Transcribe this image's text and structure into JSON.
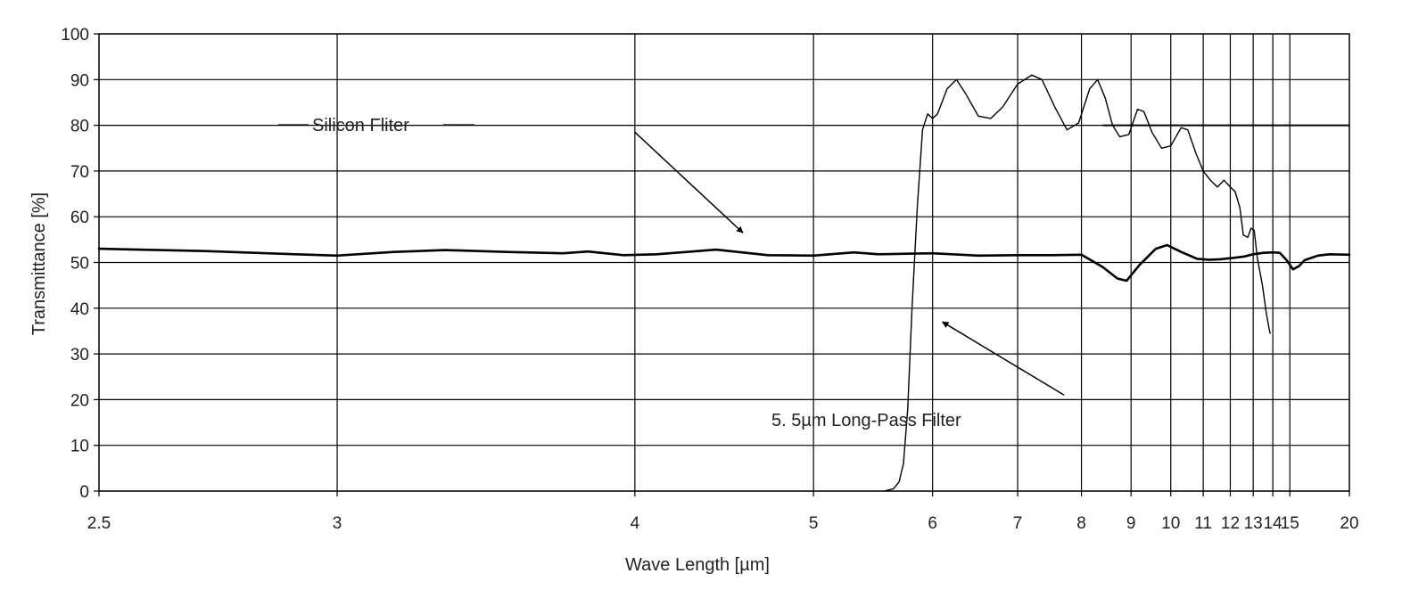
{
  "chart_data": {
    "type": "line",
    "xlabel": "Wave Length [µm]",
    "ylabel": "Transmittance [%]",
    "x_scale": "reciprocal",
    "xlim": [
      2.5,
      20
    ],
    "ylim": [
      0,
      100
    ],
    "grid": true,
    "x_ticks": [
      2.5,
      3,
      4,
      5,
      6,
      7,
      8,
      9,
      10,
      11,
      12,
      13,
      14,
      15,
      20
    ],
    "x_tick_labels": [
      "2.5",
      "3",
      "4",
      "5",
      "6",
      "7",
      "8",
      "9",
      "10",
      "11",
      "12",
      "13",
      "14",
      "15",
      "20"
    ],
    "y_ticks": [
      0,
      10,
      20,
      30,
      40,
      50,
      60,
      70,
      80,
      90,
      100
    ],
    "y_tick_labels": [
      "0",
      "10",
      "20",
      "30",
      "40",
      "50",
      "60",
      "70",
      "80",
      "90",
      "100"
    ],
    "series": [
      {
        "name": "Silicon Fliter",
        "color": "#000000",
        "points": [
          [
            2.5,
            53
          ],
          [
            2.7,
            52.5
          ],
          [
            2.9,
            51.8
          ],
          [
            3.0,
            51.5
          ],
          [
            3.15,
            52.3
          ],
          [
            3.3,
            52.7
          ],
          [
            3.5,
            52.3
          ],
          [
            3.7,
            52.0
          ],
          [
            3.8,
            52.4
          ],
          [
            3.95,
            51.6
          ],
          [
            4.1,
            51.8
          ],
          [
            4.4,
            52.8
          ],
          [
            4.7,
            51.6
          ],
          [
            5.0,
            51.5
          ],
          [
            5.3,
            52.2
          ],
          [
            5.5,
            51.8
          ],
          [
            5.7,
            51.9
          ],
          [
            6.0,
            52.0
          ],
          [
            6.5,
            51.5
          ],
          [
            7.0,
            51.6
          ],
          [
            7.5,
            51.6
          ],
          [
            8.0,
            51.7
          ],
          [
            8.4,
            49.0
          ],
          [
            8.7,
            46.5
          ],
          [
            8.9,
            46.0
          ],
          [
            9.2,
            49.5
          ],
          [
            9.6,
            53.0
          ],
          [
            9.9,
            53.8
          ],
          [
            10.3,
            52.3
          ],
          [
            10.8,
            50.8
          ],
          [
            11.2,
            50.6
          ],
          [
            11.6,
            50.7
          ],
          [
            12.1,
            51.0
          ],
          [
            12.6,
            51.3
          ],
          [
            13.0,
            51.8
          ],
          [
            13.5,
            52.1
          ],
          [
            14.0,
            52.2
          ],
          [
            14.4,
            52.1
          ],
          [
            14.8,
            50.5
          ],
          [
            15.2,
            48.5
          ],
          [
            15.6,
            49.2
          ],
          [
            16.0,
            50.5
          ],
          [
            17.0,
            51.5
          ],
          [
            18.0,
            51.8
          ],
          [
            20.0,
            51.7
          ]
        ]
      },
      {
        "name": "5. 5µm Long-Pass Filter",
        "color": "#000000",
        "points": [
          [
            5.55,
            0
          ],
          [
            5.63,
            0.5
          ],
          [
            5.68,
            2.0
          ],
          [
            5.72,
            6.0
          ],
          [
            5.76,
            18.0
          ],
          [
            5.8,
            40.0
          ],
          [
            5.85,
            62.0
          ],
          [
            5.9,
            79.0
          ],
          [
            5.95,
            82.5
          ],
          [
            6.0,
            81.5
          ],
          [
            6.05,
            82.5
          ],
          [
            6.15,
            88.0
          ],
          [
            6.25,
            90.0
          ],
          [
            6.35,
            87.0
          ],
          [
            6.5,
            82.0
          ],
          [
            6.65,
            81.5
          ],
          [
            6.8,
            84.0
          ],
          [
            7.0,
            89.0
          ],
          [
            7.2,
            91.0
          ],
          [
            7.35,
            90.0
          ],
          [
            7.55,
            84.0
          ],
          [
            7.75,
            79.0
          ],
          [
            7.95,
            80.5
          ],
          [
            8.15,
            88.0
          ],
          [
            8.3,
            90.0
          ],
          [
            8.45,
            86.0
          ],
          [
            8.6,
            80.0
          ],
          [
            8.75,
            77.5
          ],
          [
            8.95,
            78.0
          ],
          [
            9.15,
            83.5
          ],
          [
            9.3,
            83.0
          ],
          [
            9.5,
            78.5
          ],
          [
            9.75,
            75.0
          ],
          [
            10.0,
            75.5
          ],
          [
            10.3,
            79.5
          ],
          [
            10.5,
            79.0
          ],
          [
            10.75,
            74.0
          ],
          [
            11.0,
            70.0
          ],
          [
            11.25,
            68.0
          ],
          [
            11.5,
            66.5
          ],
          [
            11.75,
            68.0
          ],
          [
            12.0,
            66.5
          ],
          [
            12.2,
            65.5
          ],
          [
            12.4,
            62.0
          ],
          [
            12.55,
            56.0
          ],
          [
            12.75,
            55.5
          ],
          [
            12.9,
            57.5
          ],
          [
            13.05,
            57.0
          ],
          [
            13.2,
            51.0
          ],
          [
            13.45,
            45.0
          ],
          [
            13.65,
            39.0
          ],
          [
            13.8,
            35.5
          ],
          [
            13.85,
            34.5
          ]
        ]
      }
    ],
    "reference_lines": [
      {
        "y": 80,
        "x_from": 8.4,
        "x_to": 20
      }
    ],
    "annotations": [
      {
        "text": "Silicon Fliter",
        "arrow_from": [
          4.0,
          78.5
        ],
        "arrow_to": [
          4.55,
          56.5
        ]
      },
      {
        "text": "5. 5µm Long-Pass Filter",
        "arrow_from": [
          7.7,
          21.0
        ],
        "arrow_to": [
          6.1,
          37.0
        ]
      }
    ]
  }
}
